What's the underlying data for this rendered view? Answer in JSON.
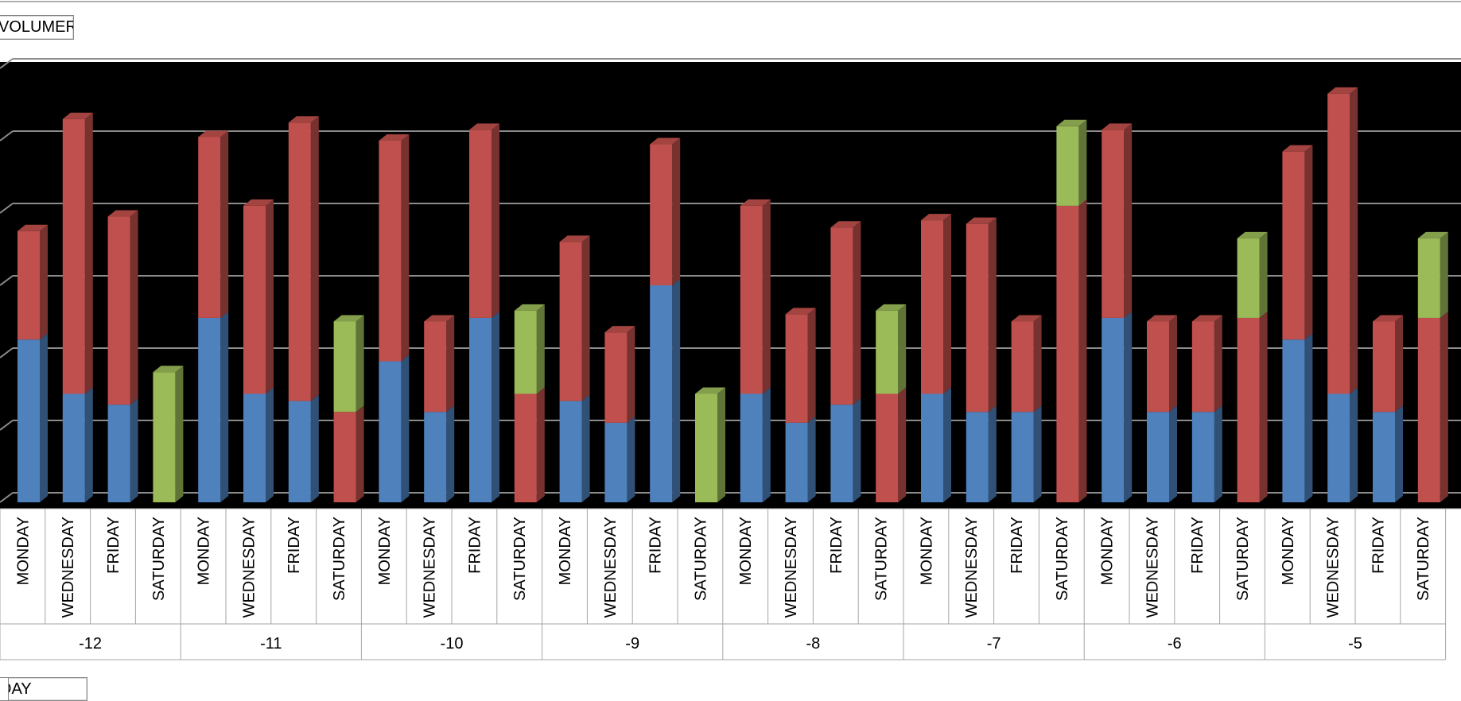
{
  "value_field_button": "VOLUMER",
  "axis_field_button": "DAY",
  "colors": {
    "plot_background": "#000000",
    "gridline": "#8c8c8c",
    "series_blue": "#4f81bd",
    "series_red": "#c0504d",
    "series_green": "#9bbb59",
    "category_divider": "#a6a6a6"
  },
  "chart_data": {
    "type": "bar",
    "stacked": true,
    "style": "3d-column",
    "title": "",
    "xlabel": "",
    "ylabel": "",
    "ylim": [
      0,
      6
    ],
    "grid": true,
    "y_tick_labels_visible": false,
    "legend": "none",
    "groups": [
      "-12",
      "-11",
      "-10",
      "-9",
      "-8",
      "-7",
      "-6",
      "-5"
    ],
    "days": [
      "MONDAY",
      "WEDNESDAY",
      "FRIDAY",
      "SATURDAY"
    ],
    "categories": [
      "MONDAY",
      "WEDNESDAY",
      "FRIDAY",
      "SATURDAY",
      "MONDAY",
      "WEDNESDAY",
      "FRIDAY",
      "SATURDAY",
      "MONDAY",
      "WEDNESDAY",
      "FRIDAY",
      "SATURDAY",
      "MONDAY",
      "WEDNESDAY",
      "FRIDAY",
      "SATURDAY",
      "MONDAY",
      "WEDNESDAY",
      "FRIDAY",
      "SATURDAY",
      "MONDAY",
      "WEDNESDAY",
      "FRIDAY",
      "SATURDAY",
      "MONDAY",
      "WEDNESDAY",
      "FRIDAY",
      "SATURDAY",
      "MONDAY",
      "WEDNESDAY",
      "FRIDAY",
      "SATURDAY"
    ],
    "series": [
      {
        "color": "#4f81bd",
        "values": [
          2.25,
          1.5,
          1.35,
          0,
          2.55,
          1.5,
          1.4,
          0,
          1.95,
          1.25,
          2.55,
          0,
          1.4,
          1.1,
          3.0,
          0,
          1.5,
          1.1,
          1.35,
          0,
          1.5,
          1.25,
          1.25,
          0,
          2.55,
          1.25,
          1.25,
          0,
          2.25,
          1.5,
          1.25,
          0
        ]
      },
      {
        "color": "#c0504d",
        "values": [
          1.5,
          3.8,
          2.6,
          0,
          2.5,
          2.6,
          3.85,
          1.25,
          3.05,
          1.25,
          2.6,
          1.5,
          2.2,
          1.25,
          1.95,
          0,
          2.6,
          1.5,
          2.45,
          1.5,
          2.4,
          2.6,
          1.25,
          4.1,
          2.6,
          1.25,
          1.25,
          2.55,
          2.6,
          4.15,
          1.25,
          2.55
        ]
      },
      {
        "color": "#9bbb59",
        "values": [
          0,
          0,
          0,
          1.8,
          0,
          0,
          0,
          1.25,
          0,
          0,
          0,
          1.15,
          0,
          0,
          0,
          1.5,
          0,
          0,
          0,
          1.15,
          0,
          0,
          0,
          1.1,
          0,
          0,
          0,
          1.1,
          0,
          0,
          0,
          1.1
        ]
      }
    ]
  }
}
